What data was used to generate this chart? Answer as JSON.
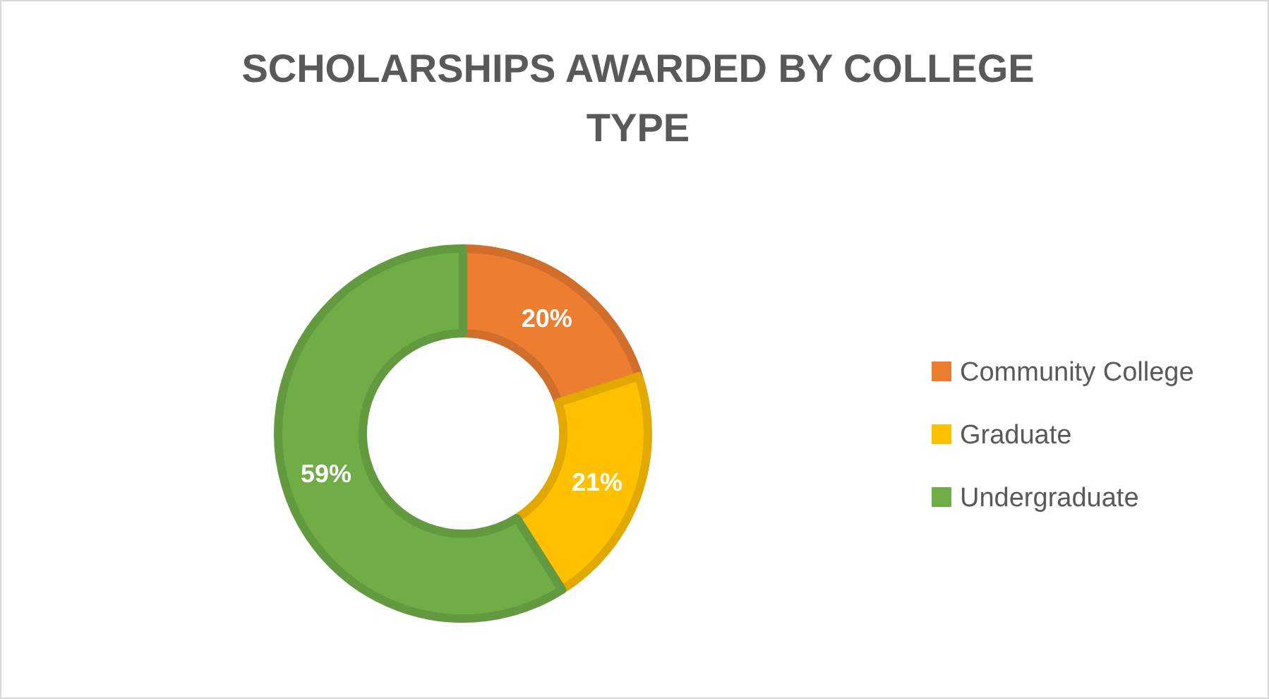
{
  "chart_data": {
    "type": "donut",
    "title": "SCHOLARSHIPS AWARDED BY COLLEGE TYPE",
    "categories": [
      "Community College",
      "Graduate",
      "Undergraduate"
    ],
    "values": [
      20,
      21,
      59
    ],
    "colors": [
      "#ed7d31",
      "#ffc000",
      "#70ad47"
    ],
    "value_labels": [
      "20%",
      "21%",
      "59%"
    ],
    "legend": "right"
  }
}
